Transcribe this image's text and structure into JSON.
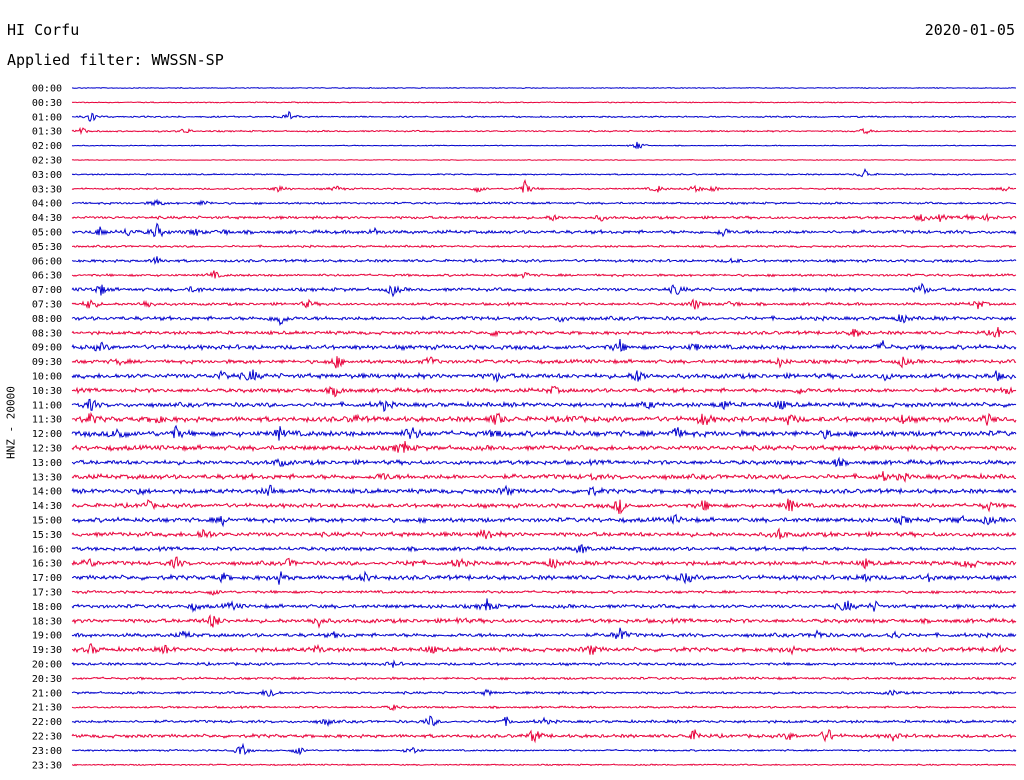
{
  "header": {
    "station": "HI Corfu",
    "date": "2020-01-05",
    "filter": "Applied filter: WWSSN-SP"
  },
  "colors": {
    "even": "#0000cc",
    "odd": "#e8003a"
  },
  "chart_data": {
    "type": "line",
    "title": "HI Corfu",
    "ylabel": "HNZ - 20000",
    "row_labels": [
      "00:00",
      "00:30",
      "01:00",
      "01:30",
      "02:00",
      "02:30",
      "03:00",
      "03:30",
      "04:00",
      "04:30",
      "05:00",
      "05:30",
      "06:00",
      "06:30",
      "07:00",
      "07:30",
      "08:00",
      "08:30",
      "09:00",
      "09:30",
      "10:00",
      "10:30",
      "11:00",
      "11:30",
      "12:00",
      "12:30",
      "13:00",
      "13:30",
      "14:00",
      "14:30",
      "15:00",
      "15:30",
      "16:00",
      "16:30",
      "17:00",
      "17:30",
      "18:00",
      "18:30",
      "19:00",
      "19:30",
      "20:00",
      "20:30",
      "21:00",
      "21:30",
      "22:00",
      "22:30",
      "23:00",
      "23:30"
    ],
    "series_colors": [
      "blue",
      "red"
    ],
    "noise_level": [
      0.5,
      0.6,
      0.9,
      0.9,
      0.5,
      0.4,
      0.8,
      1.0,
      1.2,
      1.6,
      2.0,
      1.2,
      1.6,
      1.4,
      2.0,
      1.6,
      2.2,
      2.0,
      2.6,
      2.2,
      2.8,
      2.4,
      2.6,
      3.0,
      3.2,
      2.8,
      2.6,
      2.8,
      2.6,
      2.4,
      2.6,
      2.6,
      2.2,
      2.4,
      2.6,
      1.6,
      2.2,
      2.4,
      2.2,
      2.4,
      1.6,
      1.4,
      1.4,
      1.2,
      1.6,
      2.0,
      1.0,
      0.8
    ],
    "events": [
      [],
      [],
      [
        [
          0.02,
          7
        ],
        [
          0.23,
          5
        ]
      ],
      [
        [
          0.01,
          4
        ],
        [
          0.12,
          3
        ],
        [
          0.84,
          3
        ]
      ],
      [
        [
          0.6,
          5
        ]
      ],
      [],
      [
        [
          0.84,
          6
        ]
      ],
      [
        [
          0.22,
          4
        ],
        [
          0.28,
          3
        ],
        [
          0.43,
          4
        ],
        [
          0.48,
          8
        ],
        [
          0.62,
          4
        ],
        [
          0.66,
          4
        ],
        [
          0.68,
          3
        ],
        [
          0.99,
          3
        ]
      ],
      [
        [
          0.09,
          4
        ],
        [
          0.14,
          3
        ]
      ],
      [
        [
          0.51,
          3
        ],
        [
          0.56,
          3
        ],
        [
          0.9,
          4
        ],
        [
          0.92,
          3
        ],
        [
          0.95,
          3
        ],
        [
          0.97,
          3
        ]
      ],
      [
        [
          0.03,
          5
        ],
        [
          0.06,
          4
        ],
        [
          0.09,
          8
        ],
        [
          0.13,
          4
        ],
        [
          0.16,
          3
        ],
        [
          0.32,
          4
        ],
        [
          0.69,
          5
        ]
      ],
      [],
      [
        [
          0.09,
          4
        ],
        [
          0.7,
          3
        ]
      ],
      [
        [
          0.15,
          4
        ],
        [
          0.48,
          3
        ]
      ],
      [
        [
          0.03,
          6
        ],
        [
          0.13,
          4
        ],
        [
          0.34,
          6
        ],
        [
          0.64,
          6
        ],
        [
          0.9,
          6
        ]
      ],
      [
        [
          0.02,
          7
        ],
        [
          0.08,
          5
        ],
        [
          0.25,
          4
        ],
        [
          0.66,
          6
        ],
        [
          0.7,
          4
        ],
        [
          0.96,
          5
        ]
      ],
      [
        [
          0.22,
          9
        ],
        [
          0.52,
          4
        ],
        [
          0.88,
          5
        ]
      ],
      [
        [
          0.45,
          4
        ],
        [
          0.83,
          5
        ],
        [
          0.98,
          6
        ]
      ],
      [
        [
          0.03,
          4
        ],
        [
          0.58,
          7
        ],
        [
          0.66,
          4
        ],
        [
          0.86,
          6
        ]
      ],
      [
        [
          0.05,
          3
        ],
        [
          0.28,
          7
        ],
        [
          0.38,
          5
        ],
        [
          0.75,
          4
        ],
        [
          0.88,
          5
        ]
      ],
      [
        [
          0.16,
          5
        ],
        [
          0.19,
          7
        ],
        [
          0.45,
          4
        ],
        [
          0.6,
          7
        ],
        [
          0.86,
          4
        ],
        [
          0.98,
          4
        ]
      ],
      [
        [
          0.28,
          6
        ],
        [
          0.51,
          4
        ],
        [
          0.77,
          4
        ],
        [
          0.99,
          3
        ]
      ],
      [
        [
          0.02,
          6
        ],
        [
          0.33,
          5
        ],
        [
          0.61,
          4
        ],
        [
          0.69,
          5
        ],
        [
          0.75,
          5
        ]
      ],
      [
        [
          0.02,
          5
        ],
        [
          0.09,
          4
        ],
        [
          0.3,
          4
        ],
        [
          0.45,
          7
        ],
        [
          0.53,
          4
        ],
        [
          0.67,
          8
        ],
        [
          0.76,
          6
        ],
        [
          0.88,
          4
        ],
        [
          0.97,
          5
        ]
      ],
      [
        [
          0.05,
          8
        ],
        [
          0.11,
          6
        ],
        [
          0.22,
          6
        ],
        [
          0.36,
          8
        ],
        [
          0.45,
          4
        ],
        [
          0.64,
          6
        ],
        [
          0.8,
          4
        ]
      ],
      [
        [
          0.35,
          9
        ]
      ],
      [
        [
          0.22,
          4
        ],
        [
          0.81,
          4
        ]
      ],
      [
        [
          0.33,
          4
        ],
        [
          0.55,
          3
        ],
        [
          0.86,
          4
        ],
        [
          0.88,
          3
        ]
      ],
      [
        [
          0.07,
          4
        ],
        [
          0.21,
          6
        ],
        [
          0.46,
          5
        ],
        [
          0.55,
          5
        ]
      ],
      [
        [
          0.08,
          5
        ],
        [
          0.58,
          8
        ],
        [
          0.67,
          6
        ],
        [
          0.76,
          8
        ],
        [
          0.97,
          5
        ]
      ],
      [
        [
          0.16,
          4
        ],
        [
          0.64,
          4
        ],
        [
          0.88,
          4
        ],
        [
          0.94,
          4
        ],
        [
          0.97,
          4
        ]
      ],
      [
        [
          0.14,
          7
        ],
        [
          0.44,
          7
        ],
        [
          0.75,
          6
        ]
      ],
      [
        [
          0.54,
          6
        ]
      ],
      [
        [
          0.02,
          5
        ],
        [
          0.11,
          6
        ],
        [
          0.23,
          4
        ],
        [
          0.36,
          4
        ],
        [
          0.41,
          6
        ],
        [
          0.51,
          6
        ],
        [
          0.84,
          4
        ],
        [
          0.95,
          7
        ]
      ],
      [
        [
          0.16,
          4
        ],
        [
          0.22,
          6
        ],
        [
          0.31,
          5
        ],
        [
          0.65,
          6
        ],
        [
          0.84,
          5
        ],
        [
          0.91,
          4
        ]
      ],
      [
        [
          0.15,
          3
        ]
      ],
      [
        [
          0.13,
          4
        ],
        [
          0.17,
          4
        ],
        [
          0.44,
          7
        ],
        [
          0.82,
          7
        ],
        [
          0.85,
          5
        ]
      ],
      [
        [
          0.15,
          9
        ],
        [
          0.26,
          7
        ],
        [
          0.41,
          3
        ]
      ],
      [
        [
          0.12,
          4
        ],
        [
          0.28,
          3
        ],
        [
          0.58,
          9
        ],
        [
          0.79,
          5
        ],
        [
          0.87,
          5
        ]
      ],
      [
        [
          0.02,
          5
        ],
        [
          0.1,
          4
        ],
        [
          0.26,
          4
        ],
        [
          0.38,
          4
        ],
        [
          0.55,
          6
        ],
        [
          0.76,
          4
        ],
        [
          0.98,
          4
        ]
      ],
      [
        [
          0.34,
          3
        ]
      ],
      [],
      [
        [
          0.21,
          7
        ],
        [
          0.44,
          3
        ],
        [
          0.87,
          3
        ]
      ],
      [
        [
          0.34,
          3
        ]
      ],
      [
        [
          0.27,
          4
        ],
        [
          0.38,
          6
        ],
        [
          0.46,
          4
        ],
        [
          0.5,
          3
        ]
      ],
      [
        [
          0.49,
          8
        ],
        [
          0.66,
          6
        ],
        [
          0.76,
          4
        ],
        [
          0.8,
          9
        ],
        [
          0.87,
          4
        ]
      ],
      [
        [
          0.18,
          7
        ],
        [
          0.24,
          5
        ],
        [
          0.36,
          5
        ]
      ],
      []
    ]
  }
}
